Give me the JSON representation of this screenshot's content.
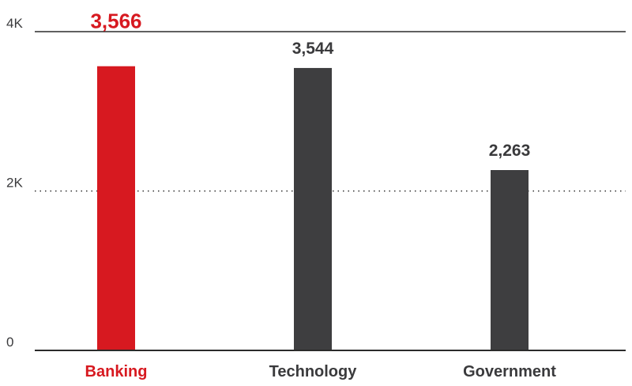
{
  "chart_data": {
    "type": "bar",
    "categories": [
      "Banking",
      "Technology",
      "Government"
    ],
    "values": [
      3566,
      3544,
      2263
    ],
    "value_labels": [
      "3,566",
      "3,544",
      "2,263"
    ],
    "highlight_index": 0,
    "ylim": [
      0,
      4000
    ],
    "yticks": [
      0,
      2000,
      4000
    ],
    "ytick_labels": [
      "0",
      "2K",
      "4K"
    ],
    "grid": true,
    "title": "",
    "xlabel": "",
    "ylabel": "",
    "colors": {
      "highlight": "#d71920",
      "default": "#3e3e40",
      "axis": "#2b2b2b",
      "label": "#3a3a3c"
    }
  }
}
